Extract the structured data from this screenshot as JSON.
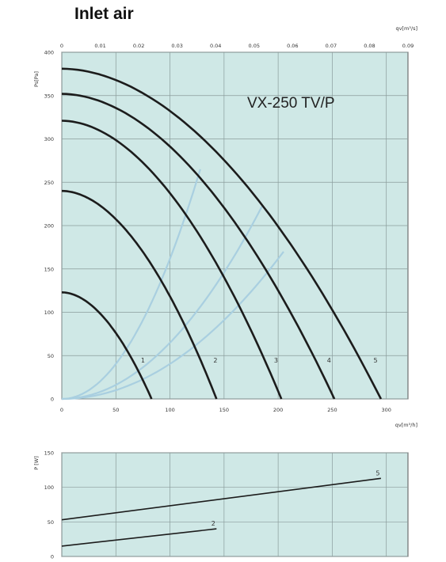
{
  "page": {
    "title": "Inlet air"
  },
  "chart_data": [
    {
      "type": "line",
      "model_label": "VX-250 TV/P",
      "xlabel": "qv[m³/h]",
      "x2label": "qv[m³/s]",
      "ylabel": "Ps[Pa]",
      "xlim": [
        0,
        320
      ],
      "x2lim": [
        0,
        0.09
      ],
      "ylim": [
        0,
        400
      ],
      "x_ticks": [
        0,
        50,
        100,
        150,
        200,
        250,
        300
      ],
      "x_tick_labels": [
        "0",
        "50",
        "100",
        "150",
        "200",
        "250",
        "300"
      ],
      "x2_ticks": [
        0,
        0.01,
        0.02,
        0.03,
        0.04,
        0.05,
        0.06,
        0.07,
        0.08,
        0.09
      ],
      "x2_tick_labels": [
        "0",
        "0.01",
        "0.02",
        "0.03",
        "0.04",
        "0.05",
        "0.06",
        "0.07",
        "0.08",
        "0.09"
      ],
      "y_ticks": [
        0,
        50,
        100,
        150,
        200,
        250,
        300,
        350,
        400
      ],
      "y_tick_labels": [
        "0",
        "50",
        "100",
        "150",
        "200",
        "250",
        "300",
        "350",
        "400"
      ],
      "grid": true,
      "background": "#cfe8e6",
      "curve_color": "#1c1c1c",
      "system_curve_color": "#a9cfe0",
      "series": [
        {
          "label": "1",
          "max_pressure": 123,
          "max_flow": 83,
          "label_at": [
            75,
            42
          ]
        },
        {
          "label": "2",
          "max_pressure": 240,
          "max_flow": 143,
          "label_at": [
            142,
            42
          ]
        },
        {
          "label": "3",
          "max_pressure": 321,
          "max_flow": 203,
          "label_at": [
            198,
            42
          ]
        },
        {
          "label": "4",
          "max_pressure": 352,
          "max_flow": 252,
          "label_at": [
            247,
            42
          ]
        },
        {
          "label": "5",
          "max_pressure": 381,
          "max_flow": 295,
          "label_at": [
            290,
            42
          ]
        }
      ],
      "system_curves": [
        {
          "to": [
            128,
            265
          ]
        },
        {
          "to": [
            185,
            222
          ]
        },
        {
          "to": [
            205,
            170
          ]
        }
      ]
    },
    {
      "type": "line",
      "ylabel": "P [W]",
      "xlim": [
        0,
        320
      ],
      "ylim": [
        0,
        150
      ],
      "y_ticks": [
        0,
        50,
        100,
        150
      ],
      "y_tick_labels": [
        "0",
        "50",
        "100",
        "150"
      ],
      "grid": true,
      "background": "#cfe8e6",
      "series": [
        {
          "label": "2",
          "x": [
            0,
            143
          ],
          "y": [
            15,
            40
          ]
        },
        {
          "label": "5",
          "x": [
            0,
            295
          ],
          "y": [
            53,
            113
          ]
        }
      ]
    }
  ]
}
